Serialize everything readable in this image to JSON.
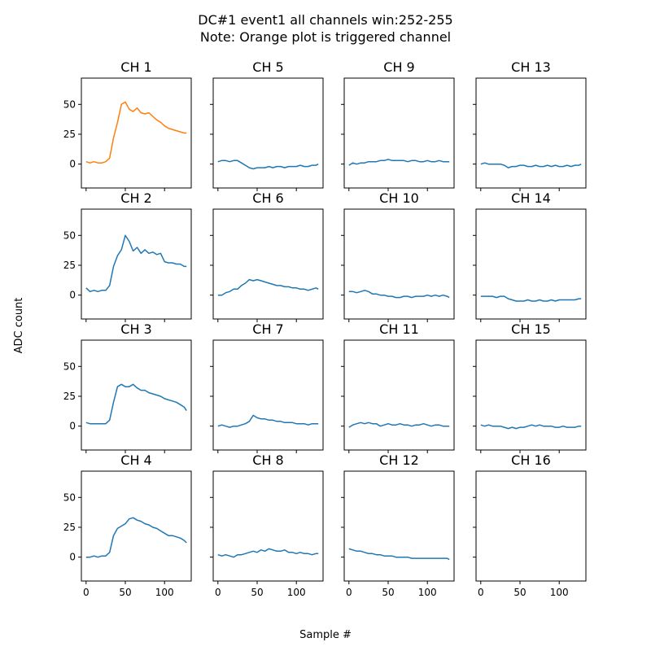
{
  "figure": {
    "title_line1": "DC#1 event1 all channels win:252-255",
    "title_line2": "Note: Orange plot is triggered channel",
    "xlabel": "Sample #",
    "ylabel": "ADC count"
  },
  "colors": {
    "default_series": "#1f77b4",
    "triggered_series": "#ff7f0e"
  },
  "chart_data": {
    "type": "line",
    "layout": "4x4 grid of small multiples, channels arranged column-wise",
    "x_unit": "Sample #",
    "y_unit": "ADC count",
    "xlim": [
      -6,
      134
    ],
    "ylim": [
      -20,
      72
    ],
    "xticks": [
      0,
      50,
      100
    ],
    "yticks": [
      0,
      25,
      50
    ],
    "triggered_channel": "CH 1",
    "panels": [
      {
        "title": "CH 1",
        "triggered": true,
        "x": [
          0,
          5,
          10,
          15,
          20,
          25,
          30,
          35,
          40,
          45,
          50,
          55,
          60,
          65,
          70,
          75,
          80,
          85,
          90,
          95,
          100,
          105,
          110,
          115,
          120,
          125,
          128
        ],
        "y": [
          2,
          1,
          2,
          1,
          1,
          2,
          5,
          22,
          35,
          50,
          52,
          46,
          44,
          47,
          43,
          42,
          43,
          40,
          37,
          35,
          32,
          30,
          29,
          28,
          27,
          26,
          26
        ]
      },
      {
        "title": "CH 2",
        "triggered": false,
        "x": [
          0,
          5,
          10,
          15,
          20,
          25,
          30,
          35,
          40,
          45,
          50,
          55,
          60,
          65,
          70,
          75,
          80,
          85,
          90,
          95,
          100,
          105,
          110,
          115,
          120,
          125,
          128
        ],
        "y": [
          6,
          3,
          4,
          3,
          4,
          4,
          8,
          24,
          33,
          38,
          50,
          45,
          37,
          40,
          35,
          38,
          35,
          36,
          34,
          35,
          28,
          27,
          27,
          26,
          26,
          24,
          24
        ]
      },
      {
        "title": "CH 3",
        "triggered": false,
        "x": [
          0,
          5,
          10,
          15,
          20,
          25,
          30,
          35,
          40,
          45,
          50,
          55,
          60,
          65,
          70,
          75,
          80,
          85,
          90,
          95,
          100,
          105,
          110,
          115,
          120,
          125,
          128
        ],
        "y": [
          3,
          2,
          2,
          2,
          2,
          2,
          5,
          20,
          33,
          35,
          33,
          33,
          35,
          32,
          30,
          30,
          28,
          27,
          26,
          25,
          23,
          22,
          21,
          20,
          18,
          16,
          13
        ]
      },
      {
        "title": "CH 4",
        "triggered": false,
        "x": [
          0,
          5,
          10,
          15,
          20,
          25,
          30,
          35,
          40,
          45,
          50,
          55,
          60,
          65,
          70,
          75,
          80,
          85,
          90,
          95,
          100,
          105,
          110,
          115,
          120,
          125,
          128
        ],
        "y": [
          0,
          0,
          1,
          0,
          1,
          1,
          4,
          18,
          24,
          26,
          28,
          32,
          33,
          31,
          30,
          28,
          27,
          25,
          24,
          22,
          20,
          18,
          18,
          17,
          16,
          14,
          12
        ]
      },
      {
        "title": "CH 5",
        "triggered": false,
        "x": [
          0,
          5,
          10,
          15,
          20,
          25,
          30,
          35,
          40,
          45,
          50,
          55,
          60,
          65,
          70,
          75,
          80,
          85,
          90,
          95,
          100,
          105,
          110,
          115,
          120,
          125,
          128
        ],
        "y": [
          2,
          3,
          3,
          2,
          3,
          3,
          1,
          -1,
          -3,
          -4,
          -3,
          -3,
          -3,
          -2,
          -3,
          -2,
          -2,
          -3,
          -2,
          -2,
          -2,
          -1,
          -2,
          -2,
          -1,
          -1,
          0
        ]
      },
      {
        "title": "CH 6",
        "triggered": false,
        "x": [
          0,
          5,
          10,
          15,
          20,
          25,
          30,
          35,
          40,
          45,
          50,
          55,
          60,
          65,
          70,
          75,
          80,
          85,
          90,
          95,
          100,
          105,
          110,
          115,
          120,
          125,
          128
        ],
        "y": [
          0,
          0,
          2,
          3,
          5,
          5,
          8,
          10,
          13,
          12,
          13,
          12,
          11,
          10,
          9,
          8,
          8,
          7,
          7,
          6,
          6,
          5,
          5,
          4,
          5,
          6,
          5
        ]
      },
      {
        "title": "CH 7",
        "triggered": false,
        "x": [
          0,
          5,
          10,
          15,
          20,
          25,
          30,
          35,
          40,
          45,
          50,
          55,
          60,
          65,
          70,
          75,
          80,
          85,
          90,
          95,
          100,
          105,
          110,
          115,
          120,
          125,
          128
        ],
        "y": [
          0,
          1,
          0,
          -1,
          0,
          0,
          1,
          2,
          4,
          9,
          7,
          6,
          6,
          5,
          5,
          4,
          4,
          3,
          3,
          3,
          2,
          2,
          2,
          1,
          2,
          2,
          2
        ]
      },
      {
        "title": "CH 8",
        "triggered": false,
        "x": [
          0,
          5,
          10,
          15,
          20,
          25,
          30,
          35,
          40,
          45,
          50,
          55,
          60,
          65,
          70,
          75,
          80,
          85,
          90,
          95,
          100,
          105,
          110,
          115,
          120,
          125,
          128
        ],
        "y": [
          2,
          1,
          2,
          1,
          0,
          2,
          2,
          3,
          4,
          5,
          4,
          6,
          5,
          7,
          6,
          5,
          5,
          6,
          4,
          4,
          3,
          4,
          3,
          3,
          2,
          3,
          3
        ]
      },
      {
        "title": "CH 9",
        "triggered": false,
        "x": [
          0,
          5,
          10,
          15,
          20,
          25,
          30,
          35,
          40,
          45,
          50,
          55,
          60,
          65,
          70,
          75,
          80,
          85,
          90,
          95,
          100,
          105,
          110,
          115,
          120,
          125,
          128
        ],
        "y": [
          -1,
          1,
          0,
          1,
          1,
          2,
          2,
          2,
          3,
          3,
          4,
          3,
          3,
          3,
          3,
          2,
          3,
          3,
          2,
          2,
          3,
          2,
          2,
          3,
          2,
          2,
          2
        ]
      },
      {
        "title": "CH 10",
        "triggered": false,
        "x": [
          0,
          5,
          10,
          15,
          20,
          25,
          30,
          35,
          40,
          45,
          50,
          55,
          60,
          65,
          70,
          75,
          80,
          85,
          90,
          95,
          100,
          105,
          110,
          115,
          120,
          125,
          128
        ],
        "y": [
          3,
          3,
          2,
          3,
          4,
          3,
          1,
          1,
          0,
          0,
          -1,
          -1,
          -2,
          -2,
          -1,
          -1,
          -2,
          -1,
          -1,
          -1,
          0,
          -1,
          0,
          -1,
          0,
          -1,
          -2
        ]
      },
      {
        "title": "CH 11",
        "triggered": false,
        "x": [
          0,
          5,
          10,
          15,
          20,
          25,
          30,
          35,
          40,
          45,
          50,
          55,
          60,
          65,
          70,
          75,
          80,
          85,
          90,
          95,
          100,
          105,
          110,
          115,
          120,
          125,
          128
        ],
        "y": [
          -1,
          1,
          2,
          3,
          2,
          3,
          2,
          2,
          0,
          1,
          2,
          1,
          1,
          2,
          1,
          1,
          0,
          1,
          1,
          2,
          1,
          0,
          1,
          1,
          0,
          0,
          0
        ]
      },
      {
        "title": "CH 12",
        "triggered": false,
        "x": [
          0,
          5,
          10,
          15,
          20,
          25,
          30,
          35,
          40,
          45,
          50,
          55,
          60,
          65,
          70,
          75,
          80,
          85,
          90,
          95,
          100,
          105,
          110,
          115,
          120,
          125,
          128
        ],
        "y": [
          7,
          6,
          5,
          5,
          4,
          3,
          3,
          2,
          2,
          1,
          1,
          1,
          0,
          0,
          0,
          0,
          -1,
          -1,
          -1,
          -1,
          -1,
          -1,
          -1,
          -1,
          -1,
          -1,
          -2
        ]
      },
      {
        "title": "CH 13",
        "triggered": false,
        "x": [
          0,
          5,
          10,
          15,
          20,
          25,
          30,
          35,
          40,
          45,
          50,
          55,
          60,
          65,
          70,
          75,
          80,
          85,
          90,
          95,
          100,
          105,
          110,
          115,
          120,
          125,
          128
        ],
        "y": [
          0,
          1,
          0,
          0,
          0,
          0,
          -1,
          -3,
          -2,
          -2,
          -1,
          -1,
          -2,
          -2,
          -1,
          -2,
          -2,
          -1,
          -2,
          -1,
          -2,
          -2,
          -1,
          -2,
          -1,
          -1,
          0
        ]
      },
      {
        "title": "CH 14",
        "triggered": false,
        "x": [
          0,
          5,
          10,
          15,
          20,
          25,
          30,
          35,
          40,
          45,
          50,
          55,
          60,
          65,
          70,
          75,
          80,
          85,
          90,
          95,
          100,
          105,
          110,
          115,
          120,
          125,
          128
        ],
        "y": [
          -1,
          -1,
          -1,
          -1,
          -2,
          -1,
          -1,
          -3,
          -4,
          -5,
          -5,
          -5,
          -4,
          -5,
          -5,
          -4,
          -5,
          -5,
          -4,
          -5,
          -4,
          -4,
          -4,
          -4,
          -4,
          -3,
          -3
        ]
      },
      {
        "title": "CH 15",
        "triggered": false,
        "x": [
          0,
          5,
          10,
          15,
          20,
          25,
          30,
          35,
          40,
          45,
          50,
          55,
          60,
          65,
          70,
          75,
          80,
          85,
          90,
          95,
          100,
          105,
          110,
          115,
          120,
          125,
          128
        ],
        "y": [
          1,
          0,
          1,
          0,
          0,
          0,
          -1,
          -2,
          -1,
          -2,
          -1,
          -1,
          0,
          1,
          0,
          1,
          0,
          0,
          0,
          -1,
          -1,
          0,
          -1,
          -1,
          -1,
          0,
          0
        ]
      },
      {
        "title": "CH 16",
        "triggered": false,
        "x": [],
        "y": []
      }
    ]
  }
}
